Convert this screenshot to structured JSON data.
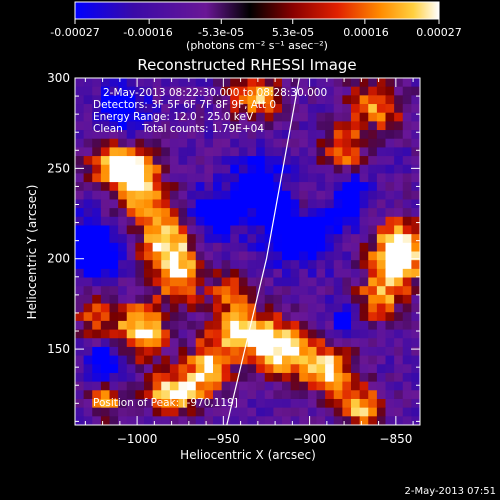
{
  "colorbar": {
    "ticks": [
      "-0.00027",
      "-0.00016",
      "-5.3e-05",
      "5.3e-05",
      "0.00016",
      "0.00027"
    ],
    "tick_values": [
      -0.00027,
      -0.00016,
      -5.3e-05,
      5.3e-05,
      0.00016,
      0.00027
    ],
    "unit_label": "(photons cm⁻² s⁻¹ asec⁻²)",
    "colormap": [
      "#0000ff",
      "#3a0aa8",
      "#6a1796",
      "#000000",
      "#8a0000",
      "#e02000",
      "#ff8c00",
      "#ffd040",
      "#ffffff"
    ]
  },
  "annotations": {
    "time_range": "2-May-2013 08:22:30.000 to 08:28:30.000",
    "detectors": "Detectors: 3F 5F 6F 7F 8F 9F, Att 0",
    "energy": "Energy Range: 12.0 - 25.0 keV",
    "clean": "Clean",
    "total_counts": "Total counts: 1.79E+04",
    "peak": "Position of Peak: [-970,119]"
  },
  "footer_timestamp": "2-May-2013 07:51",
  "chart_data": {
    "type": "heatmap",
    "title": "Reconstructed RHESSI Image",
    "xlabel": "Heliocentric X (arcsec)",
    "ylabel": "Heliocentric Y (arcsec)",
    "xlim": [
      -1036,
      -836
    ],
    "ylim": [
      108,
      300
    ],
    "xticks": [
      -1000,
      -950,
      -900,
      -850
    ],
    "xtick_labels": [
      "−1000",
      "−950",
      "−900",
      "−850"
    ],
    "yticks": [
      150,
      200,
      250,
      300
    ],
    "ytick_labels": [
      "150",
      "200",
      "250",
      "300"
    ],
    "value_range": [
      -0.00027,
      0.00027
    ],
    "peak_position": [
      -970,
      119
    ],
    "limb_line": [
      [
        -948,
        108
      ],
      [
        -925,
        200
      ],
      [
        -906,
        300
      ]
    ],
    "grid_cols": 40,
    "grid_rows": 40,
    "bright_features": [
      {
        "x": -1012,
        "y": 252,
        "amp": 1.4,
        "sx": 12,
        "sy": 8
      },
      {
        "x": -1000,
        "y": 240,
        "amp": 1.3,
        "sx": 10,
        "sy": 12
      },
      {
        "x": -985,
        "y": 212,
        "amp": 1.2,
        "sx": 11,
        "sy": 14
      },
      {
        "x": -975,
        "y": 192,
        "amp": 1.1,
        "sx": 10,
        "sy": 12
      },
      {
        "x": -930,
        "y": 290,
        "amp": 1.2,
        "sx": 12,
        "sy": 9
      },
      {
        "x": -862,
        "y": 285,
        "amp": 1.1,
        "sx": 12,
        "sy": 10
      },
      {
        "x": -880,
        "y": 260,
        "amp": 1.0,
        "sx": 9,
        "sy": 9
      },
      {
        "x": -848,
        "y": 203,
        "amp": 1.9,
        "sx": 11,
        "sy": 12
      },
      {
        "x": -860,
        "y": 178,
        "amp": 1.0,
        "sx": 10,
        "sy": 10
      },
      {
        "x": -998,
        "y": 160,
        "amp": 1.5,
        "sx": 11,
        "sy": 11
      },
      {
        "x": -1025,
        "y": 168,
        "amp": 0.9,
        "sx": 7,
        "sy": 9
      },
      {
        "x": -940,
        "y": 160,
        "amp": 1.4,
        "sx": 13,
        "sy": 10
      },
      {
        "x": -915,
        "y": 150,
        "amp": 1.5,
        "sx": 13,
        "sy": 10
      },
      {
        "x": -890,
        "y": 138,
        "amp": 1.3,
        "sx": 11,
        "sy": 9
      },
      {
        "x": -870,
        "y": 118,
        "amp": 1.2,
        "sx": 10,
        "sy": 8
      },
      {
        "x": -960,
        "y": 138,
        "amp": 1.3,
        "sx": 10,
        "sy": 10
      },
      {
        "x": -980,
        "y": 125,
        "amp": 1.4,
        "sx": 10,
        "sy": 8
      },
      {
        "x": -1018,
        "y": 122,
        "amp": 1.0,
        "sx": 8,
        "sy": 7
      },
      {
        "x": -902,
        "y": 230,
        "amp": 0.9,
        "sx": 7,
        "sy": 8
      },
      {
        "x": -946,
        "y": 183,
        "amp": 0.8,
        "sx": 8,
        "sy": 7
      }
    ],
    "dark_features": [
      {
        "x": -905,
        "y": 218,
        "amp": 1.4,
        "sx": 14,
        "sy": 12
      },
      {
        "x": -930,
        "y": 240,
        "amp": 1.1,
        "sx": 10,
        "sy": 10
      },
      {
        "x": -1025,
        "y": 205,
        "amp": 1.2,
        "sx": 11,
        "sy": 11
      },
      {
        "x": -955,
        "y": 225,
        "amp": 1.0,
        "sx": 10,
        "sy": 9
      },
      {
        "x": -1010,
        "y": 282,
        "amp": 0.9,
        "sx": 10,
        "sy": 9
      },
      {
        "x": -1018,
        "y": 142,
        "amp": 1.0,
        "sx": 9,
        "sy": 8
      },
      {
        "x": -875,
        "y": 235,
        "amp": 0.8,
        "sx": 7,
        "sy": 9
      },
      {
        "x": -880,
        "y": 168,
        "amp": 0.7,
        "sx": 6,
        "sy": 7
      }
    ]
  }
}
